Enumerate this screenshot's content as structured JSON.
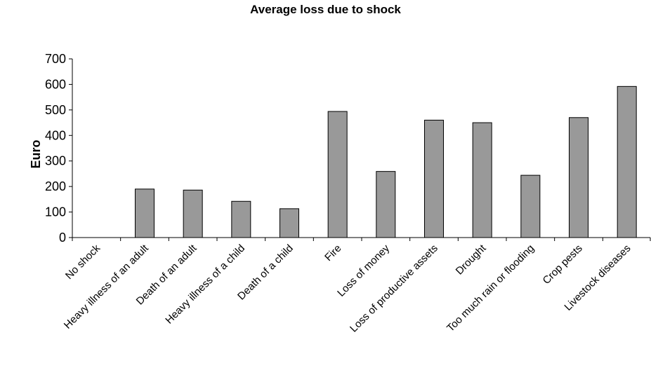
{
  "chart_data": {
    "type": "bar",
    "title": "Average loss due to shock",
    "xlabel": "",
    "ylabel": "Euro",
    "ylim": [
      0,
      700
    ],
    "yticks": [
      0,
      100,
      200,
      300,
      400,
      500,
      600,
      700
    ],
    "grid": false,
    "legend": "none",
    "bar_color": "#999999",
    "categories": [
      "No shock",
      "Heavy illness of an adult",
      "Death of an adult",
      "Heavy illness of a child",
      "Death of a child",
      "Fire",
      "Loss of money",
      "Loss of productive assets",
      "Drought",
      "Too much rain or flooding",
      "Crop pests",
      "Livestock diseases"
    ],
    "values": [
      0,
      190,
      186,
      142,
      113,
      494,
      259,
      460,
      450,
      244,
      470,
      592
    ]
  }
}
